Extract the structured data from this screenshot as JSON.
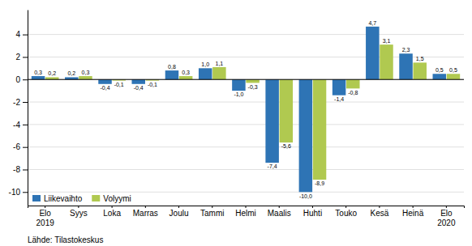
{
  "chart_data": {
    "type": "bar",
    "categories": [
      "Elo\n2019",
      "Syys",
      "Loka",
      "Marras",
      "Joulu",
      "Tammi",
      "Helmi",
      "Maalis",
      "Huhti",
      "Touko",
      "Kesä",
      "Heinä",
      "Elo\n2020"
    ],
    "series": [
      {
        "name": "Liikevaihto",
        "color": "#2e74b5",
        "values": [
          0.3,
          0.2,
          -0.4,
          -0.4,
          0.8,
          1.0,
          -1.0,
          -7.4,
          -10.0,
          -1.4,
          4.7,
          2.3,
          0.5
        ],
        "value_labels": [
          "0,3",
          "0,2",
          "-0,4",
          "-0,4",
          "0,8",
          "1,0",
          "-1,0",
          "-7,4",
          "-10,0",
          "-1,4",
          "4,7",
          "2,3",
          "0,5"
        ]
      },
      {
        "name": "Volyymi",
        "color": "#b0c950",
        "values": [
          0.2,
          0.3,
          -0.1,
          -0.1,
          0.3,
          1.1,
          -0.3,
          -5.6,
          -8.9,
          -0.8,
          3.1,
          1.5,
          0.5
        ],
        "value_labels": [
          "0,2",
          "0,3",
          "-0,1",
          "-0,1",
          "0,3",
          "1,1",
          "-0,3",
          "-5,6",
          "-8,9",
          "-0,8",
          "3,1",
          "1,5",
          "0,5"
        ]
      }
    ],
    "ylim": [
      -11.2,
      6.2
    ],
    "yticks": [
      -10,
      -8,
      -6,
      -4,
      -2,
      0,
      2,
      4
    ],
    "grid": true,
    "legend": "lower left",
    "data_labels": true,
    "annotations": [
      "Lähde: Tilastokeskus"
    ]
  }
}
